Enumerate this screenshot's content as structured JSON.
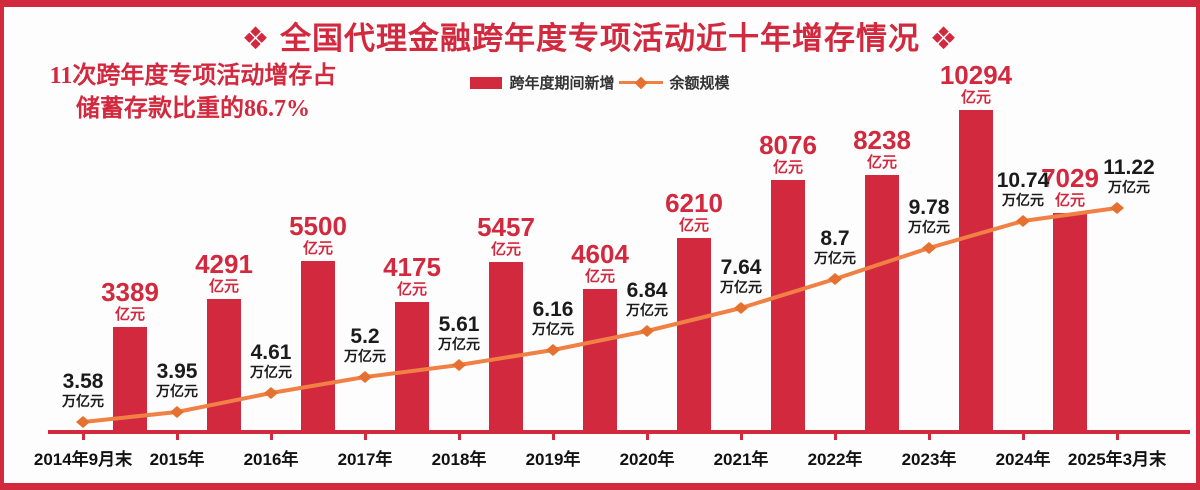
{
  "title": "❖ 全国代理金融跨年度专项活动近十年增存情况 ❖",
  "annotation": {
    "line1": "11次跨年度专项活动增存占",
    "line2": "储蓄存款比重的86.7%"
  },
  "legend": {
    "bar_label": "跨年度期间新增",
    "line_label": "余额规模"
  },
  "colors": {
    "red": "#d2293e",
    "orange_line": "#f08044",
    "orange_marker": "#e5702f",
    "text": "#1b1b1b",
    "background": "#fdfdfd"
  },
  "chart_data": {
    "type": "bar",
    "subtype": "bar+line combo",
    "title": "全国代理金融跨年度专项活动近十年增存情况",
    "x_labels": [
      "2014年9月末",
      "2015年",
      "2016年",
      "2017年",
      "2018年",
      "2019年",
      "2020年",
      "2021年",
      "2022年",
      "2023年",
      "2024年",
      "2025年3月末"
    ],
    "grid": false,
    "legend_position": "top-center",
    "series": [
      {
        "name": "跨年度期间新增",
        "type": "bar",
        "unit": "亿元",
        "placement": "between adjacent x labels",
        "values": [
          3389,
          4291,
          5500,
          4175,
          5457,
          4604,
          6210,
          8076,
          8238,
          10294,
          7029
        ]
      },
      {
        "name": "余额规模",
        "type": "line",
        "unit": "万亿元",
        "placement": "at each x label",
        "values": [
          3.58,
          3.95,
          4.61,
          5.2,
          5.61,
          6.16,
          6.84,
          7.64,
          8.7,
          9.78,
          10.74,
          11.22
        ]
      }
    ]
  }
}
